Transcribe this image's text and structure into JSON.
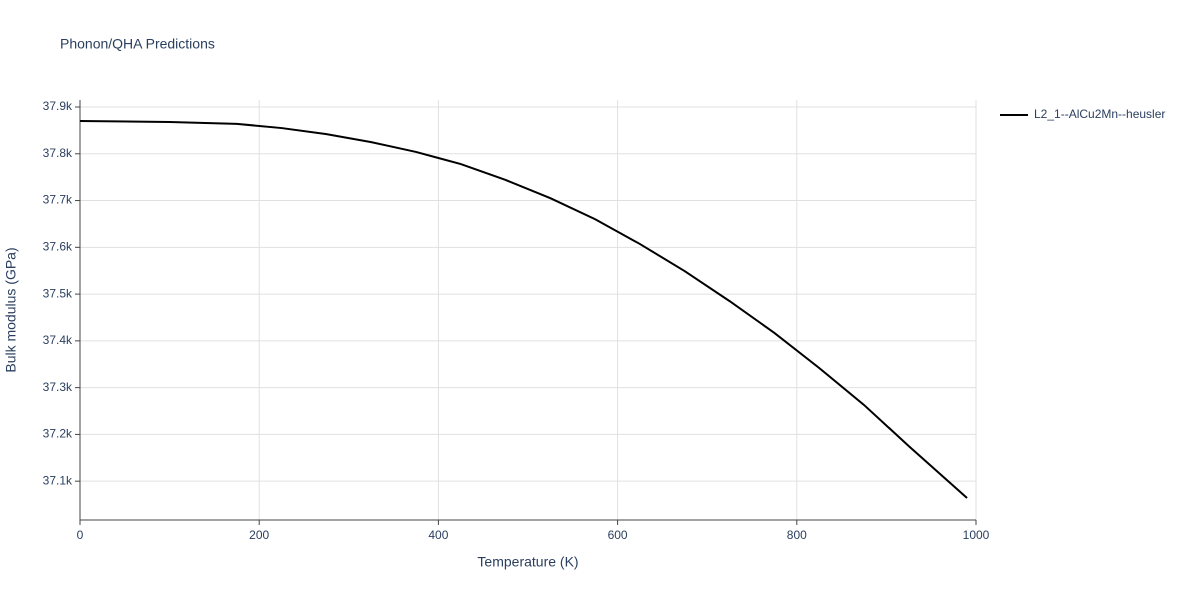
{
  "chart_data": {
    "type": "line",
    "title": "Phonon/QHA Predictions",
    "x_label": "Temperature (K)",
    "y_label": "Bulk modulus (GPa)",
    "x": [
      0,
      100,
      175,
      225,
      275,
      325,
      375,
      400,
      425,
      475,
      525,
      575,
      625,
      675,
      725,
      775,
      825,
      875,
      925,
      990
    ],
    "series": [
      {
        "name": "L2_1--AlCu2Mn--heusler",
        "color": "#000000",
        "values": [
          37870,
          37868,
          37864,
          37855,
          37842,
          37825,
          37804,
          37791,
          37778,
          37744,
          37705,
          37660,
          37607,
          37549,
          37485,
          37417,
          37342,
          37263,
          37175,
          37064
        ]
      }
    ],
    "xlim": [
      0,
      1000
    ],
    "xticks": [
      0,
      200,
      400,
      600,
      800,
      1000
    ],
    "ylim": [
      37017,
      37915
    ],
    "yticks": [
      {
        "value": 37100,
        "label": "37.1k"
      },
      {
        "value": 37200,
        "label": "37.2k"
      },
      {
        "value": 37300,
        "label": "37.3k"
      },
      {
        "value": 37400,
        "label": "37.4k"
      },
      {
        "value": 37500,
        "label": "37.5k"
      },
      {
        "value": 37600,
        "label": "37.6k"
      },
      {
        "value": 37700,
        "label": "37.7k"
      },
      {
        "value": 37800,
        "label": "37.8k"
      },
      {
        "value": 37900,
        "label": "37.9k"
      }
    ],
    "grid": true,
    "legend": "top-right"
  }
}
